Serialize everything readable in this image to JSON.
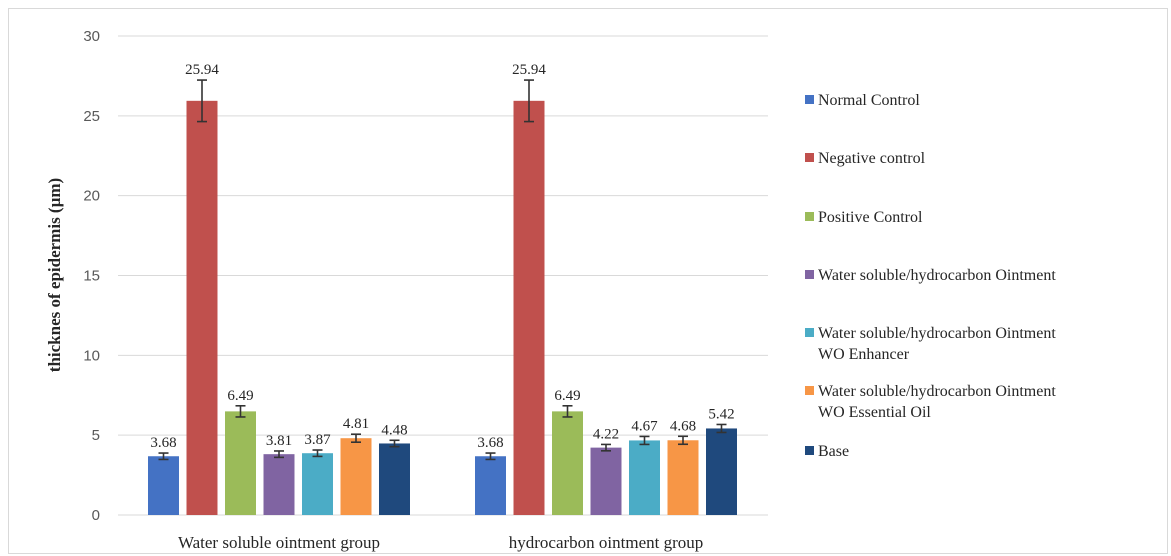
{
  "chart_data": {
    "type": "bar",
    "title": "",
    "xlabel": "",
    "ylabel": "thicknes of epidermis (µm)",
    "ylim": [
      0,
      30
    ],
    "yticks": [
      "0",
      "5",
      "10",
      "15",
      "20",
      "25",
      "30"
    ],
    "grid": true,
    "legend_position": "right",
    "categories": [
      "Water soluble ointment group",
      "hydrocarbon ointment group"
    ],
    "series": [
      {
        "name": "Normal Control",
        "name_lines": [
          "Normal Control"
        ],
        "color": "#4472c4",
        "values": [
          3.68,
          3.68
        ],
        "labels": [
          "3.68",
          "3.68"
        ],
        "errors": [
          0.2,
          0.2
        ]
      },
      {
        "name": "Negative control",
        "name_lines": [
          "Negative control"
        ],
        "color": "#c0504d",
        "values": [
          25.94,
          25.94
        ],
        "labels": [
          "25.94",
          "25.94"
        ],
        "errors": [
          1.3,
          1.3
        ]
      },
      {
        "name": "Positive Control",
        "name_lines": [
          "Positive Control"
        ],
        "color": "#9bbb59",
        "values": [
          6.49,
          6.49
        ],
        "labels": [
          "6.49",
          "6.49"
        ],
        "errors": [
          0.35,
          0.35
        ]
      },
      {
        "name": "Water soluble/hydrocarbon Ointment",
        "name_lines": [
          "Water soluble/hydrocarbon Ointment"
        ],
        "color": "#8064a2",
        "values": [
          3.81,
          4.22
        ],
        "labels": [
          "3.81",
          "4.22"
        ],
        "errors": [
          0.2,
          0.2
        ]
      },
      {
        "name": "Water soluble/hydrocarbon Ointment WO Enhancer",
        "name_lines": [
          "Water soluble/hydrocarbon Ointment",
          "WO Enhancer"
        ],
        "color": "#4bacc6",
        "values": [
          3.87,
          4.67
        ],
        "labels": [
          "3.87",
          "4.67"
        ],
        "errors": [
          0.2,
          0.25
        ]
      },
      {
        "name": "Water soluble/hydrocarbon Ointment WO Essential Oil",
        "name_lines": [
          "Water soluble/hydrocarbon Ointment",
          "WO Essential Oil"
        ],
        "color": "#f79646",
        "values": [
          4.81,
          4.68
        ],
        "labels": [
          "4.81",
          "4.68"
        ],
        "errors": [
          0.25,
          0.25
        ]
      },
      {
        "name": "Base",
        "name_lines": [
          "Base"
        ],
        "color": "#1f497d",
        "values": [
          4.48,
          5.42
        ],
        "labels": [
          "4.48",
          "5.42"
        ],
        "errors": [
          0.2,
          0.25
        ]
      }
    ]
  }
}
